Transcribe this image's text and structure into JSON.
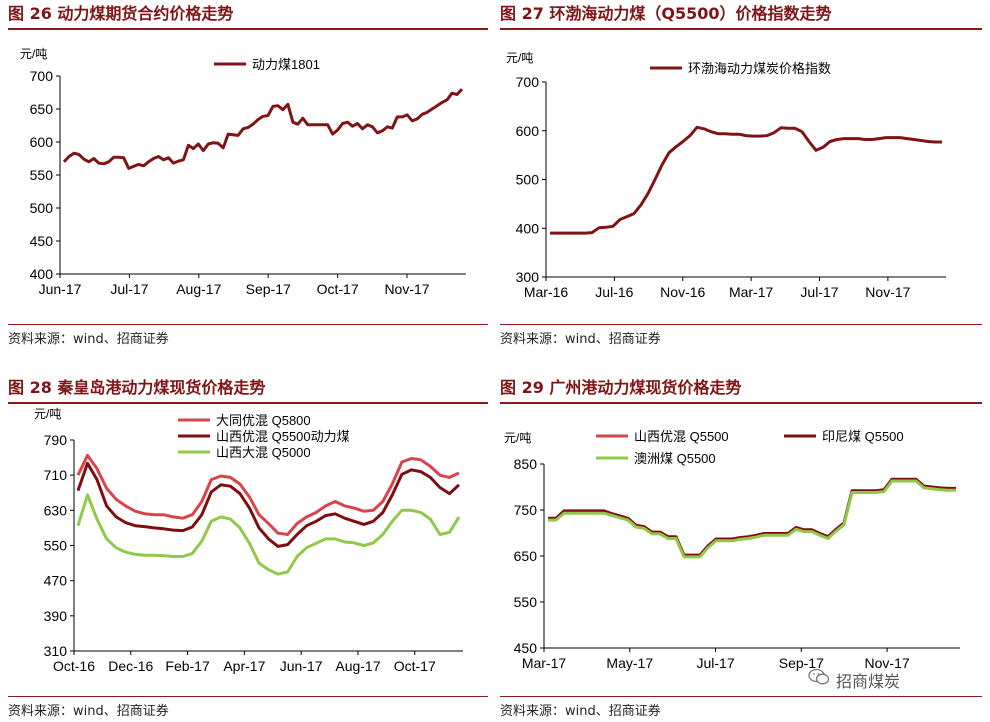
{
  "watermark": {
    "text": "招商煤炭",
    "icon": "wechat-icon"
  },
  "charts": [
    {
      "title": "图 26 动力煤期货合约价格走势",
      "source": "资料来源：wind、招商证券",
      "chart_data": {
        "type": "line",
        "ylabel": "元/吨",
        "ylim": [
          400,
          700
        ],
        "yticks": [
          "400",
          "450",
          "500",
          "550",
          "600",
          "650",
          "700"
        ],
        "xticks": [
          "Jun-17",
          "Jul-17",
          "Aug-17",
          "Sep-17",
          "Oct-17",
          "Nov-17"
        ],
        "legend_position": "top",
        "series": [
          {
            "name": "动力煤1801",
            "color": "#7f1416",
            "values": [
              570,
              578,
              583,
              581,
              574,
              570,
              575,
              568,
              567,
              570,
              577,
              577,
              576,
              560,
              563,
              566,
              564,
              570,
              575,
              578,
              573,
              576,
              568,
              571,
              573,
              595,
              590,
              597,
              587,
              597,
              599,
              598,
              591,
              612,
              611,
              610,
              620,
              622,
              627,
              634,
              639,
              640,
              654,
              655,
              649,
              657,
              630,
              627,
              636,
              626,
              626,
              626,
              626,
              626,
              612,
              618,
              628,
              630,
              624,
              628,
              620,
              626,
              623,
              614,
              617,
              623,
              621,
              638,
              638,
              641,
              632,
              635,
              642,
              645,
              650,
              655,
              660,
              664,
              674,
              672,
              680
            ]
          }
        ]
      }
    },
    {
      "title": "图 27 环渤海动力煤（Q5500）价格指数走势",
      "source": "资料来源：wind、招商证券",
      "chart_data": {
        "type": "line",
        "ylabel": "元/吨",
        "ylim": [
          300,
          700
        ],
        "yticks": [
          "300",
          "400",
          "500",
          "600",
          "700"
        ],
        "xticks": [
          "Mar-16",
          "Jul-16",
          "Nov-16",
          "Mar-17",
          "Jul-17",
          "Nov-17"
        ],
        "legend_position": "top",
        "series": [
          {
            "name": "环渤海动力煤炭价格指数",
            "color": "#7f1416",
            "values": [
              390,
              390,
              390,
              390,
              390,
              390,
              391,
              401,
              402,
              404,
              418,
              424,
              430,
              448,
              471,
              500,
              530,
              555,
              567,
              578,
              590,
              607,
              604,
              598,
              594,
              594,
              593,
              593,
              590,
              589,
              589,
              590,
              596,
              606,
              605,
              605,
              598,
              578,
              560,
              566,
              578,
              582,
              584,
              584,
              584,
              582,
              582,
              584,
              586,
              586,
              586,
              584,
              582,
              580,
              578,
              577,
              577
            ]
          }
        ]
      }
    },
    {
      "title": "图 28 秦皇岛港动力煤现货价格走势",
      "source": "资料来源：wind、招商证券",
      "chart_data": {
        "type": "line",
        "ylabel": "元/吨",
        "ylim": [
          310,
          790
        ],
        "yticks": [
          "310",
          "390",
          "470",
          "550",
          "630",
          "710",
          "790"
        ],
        "xticks": [
          "Oct-16",
          "Dec-16",
          "Feb-17",
          "Apr-17",
          "Jun-17",
          "Aug-17",
          "Oct-17"
        ],
        "legend_position": "top",
        "series": [
          {
            "name": "大同优混 Q5800",
            "color": "#d9434a",
            "values": [
              710,
              755,
              725,
              680,
              655,
              640,
              628,
              622,
              620,
              620,
              615,
              612,
              620,
              650,
              700,
              708,
              705,
              690,
              660,
              620,
              600,
              578,
              575,
              600,
              615,
              625,
              640,
              650,
              640,
              635,
              628,
              630,
              650,
              690,
              740,
              748,
              745,
              730,
              710,
              705,
              715
            ]
          },
          {
            "name": "山西优混 Q5500动力煤",
            "color": "#7f0d10",
            "values": [
              675,
              737,
              700,
              640,
              615,
              602,
              595,
              593,
              590,
              588,
              585,
              584,
              592,
              620,
              672,
              688,
              685,
              668,
              635,
              590,
              565,
              548,
              552,
              575,
              595,
              605,
              618,
              622,
              612,
              605,
              598,
              605,
              625,
              665,
              712,
              722,
              718,
              705,
              682,
              668,
              688
            ]
          },
          {
            "name": "山西大混 Q5000",
            "color": "#92c84a",
            "values": [
              595,
              665,
              610,
              565,
              545,
              535,
              530,
              528,
              528,
              527,
              525,
              525,
              532,
              560,
              605,
              615,
              610,
              590,
              555,
              510,
              495,
              485,
              490,
              525,
              545,
              555,
              565,
              565,
              558,
              556,
              550,
              556,
              575,
              605,
              630,
              630,
              625,
              610,
              575,
              580,
              615
            ]
          }
        ]
      }
    },
    {
      "title": "图 29 广州港动力煤现货价格走势",
      "source": "资料来源：wind、招商证券",
      "chart_data": {
        "type": "line",
        "ylabel": "元/吨",
        "ylim": [
          450,
          850
        ],
        "yticks": [
          "450",
          "550",
          "650",
          "750",
          "850"
        ],
        "xticks": [
          "Mar-17",
          "May-17",
          "Jul-17",
          "Sep-17",
          "Nov-17"
        ],
        "legend_position": "top",
        "series": [
          {
            "name": "山西优混 Q5500",
            "color": "#d9434a",
            "values": [
              730,
              730,
              745,
              745,
              745,
              745,
              745,
              745,
              740,
              735,
              730,
              715,
              712,
              700,
              700,
              690,
              690,
              650,
              650,
              650,
              670,
              685,
              685,
              685,
              688,
              690,
              693,
              697,
              697,
              697,
              697,
              710,
              705,
              705,
              697,
              690,
              706,
              720,
              790,
              790,
              790,
              790,
              792,
              815,
              815,
              815,
              815,
              800,
              798,
              796,
              795,
              795
            ]
          },
          {
            "name": "印尼煤 Q5500",
            "color": "#7f0d10",
            "values": [
              732,
              732,
              748,
              748,
              748,
              748,
              748,
              748,
              742,
              737,
              732,
              717,
              714,
              702,
              702,
              692,
              692,
              652,
              652,
              652,
              672,
              687,
              687,
              687,
              690,
              692,
              695,
              699,
              699,
              699,
              699,
              712,
              707,
              707,
              699,
              692,
              708,
              722,
              792,
              792,
              792,
              792,
              794,
              817,
              817,
              817,
              817,
              802,
              800,
              798,
              797,
              797
            ]
          },
          {
            "name": "澳洲煤 Q5500",
            "color": "#92c84a",
            "values": [
              728,
              728,
              743,
              743,
              743,
              743,
              743,
              743,
              738,
              733,
              728,
              713,
              710,
              698,
              698,
              688,
              688,
              648,
              648,
              648,
              668,
              683,
              683,
              683,
              686,
              688,
              691,
              695,
              695,
              695,
              695,
              708,
              703,
              703,
              695,
              688,
              704,
              718,
              788,
              788,
              788,
              788,
              790,
              813,
              813,
              813,
              813,
              798,
              796,
              794,
              793,
              793
            ]
          }
        ]
      }
    }
  ]
}
